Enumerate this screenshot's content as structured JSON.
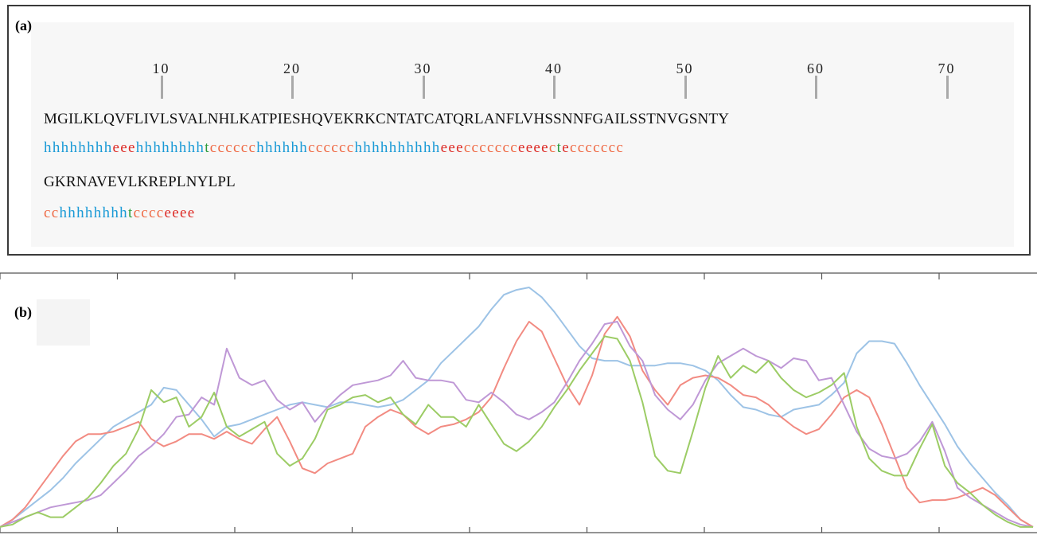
{
  "panel_a": {
    "label": "(a)",
    "ruler": [
      {
        "label": "10",
        "pos": 10
      },
      {
        "label": "20",
        "pos": 20
      },
      {
        "label": "30",
        "pos": 30
      },
      {
        "label": "40",
        "pos": 40
      },
      {
        "label": "50",
        "pos": 50
      },
      {
        "label": "60",
        "pos": 60
      },
      {
        "label": "70",
        "pos": 70
      }
    ],
    "sequence_line1": "MGILKLQVFLIVLSVALNHLKATPIESHQVEKRKCNTATCATQRLANFLVHSSNNFGAILSSTNVGSNTY",
    "ss_line1": "hhhhhhhheeehhhhhhhhtcccccchhhhhhcccccchhhhhhhhhheeeccccccceeeecteccccccc",
    "sequence_line2": "GKRNAVEVLKREPLNYLPL",
    "ss_line2": "cchhhhhhhhtcccceeee",
    "colors": {
      "h": "#1a9ad6",
      "e": "#dd2b26",
      "c": "#ef6a45",
      "t": "#2a9a3b"
    }
  },
  "panel_b": {
    "label": "(b)"
  },
  "chart_data": {
    "type": "line",
    "xlim": [
      0,
      88
    ],
    "ylim": [
      0,
      1
    ],
    "grid": false,
    "x_ticks": [
      0,
      10,
      20,
      30,
      40,
      50,
      60,
      70,
      80
    ],
    "series": [
      {
        "color": "#9dc3e6",
        "values": [
          0.02,
          0.05,
          0.09,
          0.13,
          0.17,
          0.22,
          0.28,
          0.33,
          0.38,
          0.43,
          0.46,
          0.49,
          0.52,
          0.59,
          0.58,
          0.52,
          0.46,
          0.39,
          0.43,
          0.44,
          0.46,
          0.48,
          0.5,
          0.52,
          0.53,
          0.52,
          0.51,
          0.53,
          0.53,
          0.52,
          0.51,
          0.52,
          0.54,
          0.58,
          0.62,
          0.69,
          0.74,
          0.79,
          0.84,
          0.91,
          0.97,
          0.99,
          1.0,
          0.96,
          0.9,
          0.83,
          0.76,
          0.71,
          0.7,
          0.7,
          0.68,
          0.68,
          0.68,
          0.69,
          0.69,
          0.68,
          0.66,
          0.62,
          0.56,
          0.51,
          0.5,
          0.48,
          0.47,
          0.5,
          0.51,
          0.52,
          0.56,
          0.61,
          0.73,
          0.78,
          0.78,
          0.77,
          0.69,
          0.6,
          0.52,
          0.44,
          0.35,
          0.28,
          0.22,
          0.16,
          0.11,
          0.05,
          0.02
        ]
      },
      {
        "color": "#f28b82",
        "values": [
          0.02,
          0.05,
          0.1,
          0.17,
          0.24,
          0.31,
          0.37,
          0.4,
          0.4,
          0.41,
          0.43,
          0.45,
          0.38,
          0.35,
          0.37,
          0.4,
          0.4,
          0.38,
          0.41,
          0.38,
          0.36,
          0.42,
          0.47,
          0.37,
          0.26,
          0.24,
          0.28,
          0.3,
          0.32,
          0.43,
          0.47,
          0.5,
          0.48,
          0.43,
          0.4,
          0.43,
          0.44,
          0.46,
          0.49,
          0.55,
          0.67,
          0.78,
          0.86,
          0.82,
          0.71,
          0.6,
          0.52,
          0.64,
          0.81,
          0.88,
          0.8,
          0.66,
          0.58,
          0.52,
          0.6,
          0.63,
          0.64,
          0.63,
          0.6,
          0.56,
          0.55,
          0.52,
          0.47,
          0.43,
          0.4,
          0.42,
          0.48,
          0.55,
          0.58,
          0.55,
          0.44,
          0.31,
          0.18,
          0.12,
          0.13,
          0.13,
          0.14,
          0.16,
          0.18,
          0.15,
          0.1,
          0.05,
          0.02
        ]
      },
      {
        "color": "#bf98d6",
        "values": [
          0.02,
          0.04,
          0.06,
          0.08,
          0.1,
          0.11,
          0.12,
          0.13,
          0.15,
          0.2,
          0.25,
          0.31,
          0.35,
          0.4,
          0.47,
          0.48,
          0.55,
          0.52,
          0.75,
          0.63,
          0.6,
          0.62,
          0.54,
          0.5,
          0.53,
          0.45,
          0.51,
          0.56,
          0.6,
          0.61,
          0.62,
          0.64,
          0.7,
          0.63,
          0.62,
          0.62,
          0.61,
          0.54,
          0.53,
          0.57,
          0.53,
          0.48,
          0.46,
          0.49,
          0.53,
          0.61,
          0.7,
          0.77,
          0.85,
          0.86,
          0.76,
          0.7,
          0.56,
          0.5,
          0.46,
          0.52,
          0.62,
          0.69,
          0.72,
          0.75,
          0.72,
          0.7,
          0.67,
          0.71,
          0.7,
          0.62,
          0.63,
          0.52,
          0.41,
          0.34,
          0.31,
          0.3,
          0.32,
          0.37,
          0.45,
          0.33,
          0.18,
          0.14,
          0.11,
          0.08,
          0.05,
          0.03,
          0.02
        ]
      },
      {
        "color": "#9ccc65",
        "values": [
          0.02,
          0.03,
          0.06,
          0.08,
          0.06,
          0.06,
          0.1,
          0.14,
          0.2,
          0.27,
          0.32,
          0.42,
          0.58,
          0.53,
          0.55,
          0.43,
          0.47,
          0.57,
          0.43,
          0.39,
          0.42,
          0.45,
          0.32,
          0.27,
          0.3,
          0.38,
          0.5,
          0.52,
          0.55,
          0.56,
          0.53,
          0.55,
          0.48,
          0.44,
          0.52,
          0.47,
          0.47,
          0.43,
          0.52,
          0.44,
          0.36,
          0.33,
          0.37,
          0.43,
          0.51,
          0.58,
          0.66,
          0.73,
          0.8,
          0.79,
          0.7,
          0.53,
          0.31,
          0.25,
          0.24,
          0.41,
          0.59,
          0.72,
          0.63,
          0.68,
          0.65,
          0.7,
          0.63,
          0.58,
          0.55,
          0.57,
          0.6,
          0.65,
          0.43,
          0.3,
          0.25,
          0.23,
          0.23,
          0.34,
          0.44,
          0.27,
          0.2,
          0.16,
          0.11,
          0.07,
          0.04,
          0.02,
          0.02
        ]
      }
    ]
  }
}
